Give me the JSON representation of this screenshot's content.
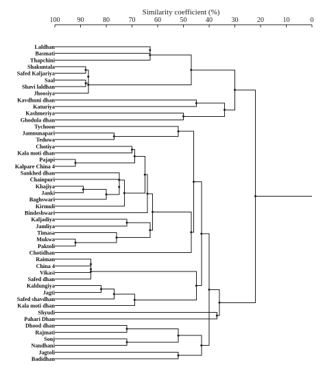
{
  "chart_data": {
    "type": "dendrogram",
    "xlabel": "Similarity coefficient (%)",
    "xlim": [
      100,
      0
    ],
    "ticks": [
      100,
      90,
      80,
      70,
      60,
      50,
      40,
      30,
      20,
      10,
      0
    ],
    "leaves": [
      "Laldhan",
      "Basmati",
      "Thapchini",
      "Shakuntala",
      "Safed Kaljariya",
      "Saal",
      "Shavi laldhan",
      "Jhoosiya",
      "Kavdhuni dhan",
      "Katuriya",
      "Kashmeriya",
      "Ghodula dhan",
      "Tychoon",
      "Jamnunapari",
      "Teduwa",
      "Chotiya",
      "Kala moti dhan",
      "Pajapi",
      "Kalpare China 4",
      "Sankhed dhan",
      "Chainpuri",
      "Khajiya",
      "Janki",
      "Baghswari",
      "Kirmuli",
      "Bindeshwari",
      "Kaljadiya",
      "Jamliya",
      "Timasa",
      "Mukwa",
      "Paktoli",
      "Chotidhan",
      "Raiman",
      "China 4",
      "Vikasi",
      "Safed dhan",
      "Kaldungiya",
      "Jagti",
      "Safed shavdhan",
      "Kala moti dhan",
      "Shyudi",
      "Pahari Dhan",
      "Dhood dhan",
      "Rajmati",
      "Sonj",
      "Nandhani",
      "Jagtoli",
      "Badidhan"
    ],
    "merges": [
      {
        "id": "m1",
        "a": 3,
        "b": 4,
        "similarity": 88
      },
      {
        "id": "m2",
        "a": 5,
        "b": 6,
        "similarity": 88
      },
      {
        "id": "m3",
        "a": 0,
        "b": 1,
        "similarity": 63
      },
      {
        "id": "m4",
        "a": "m3",
        "b": 2,
        "similarity": 63
      },
      {
        "id": "m5",
        "a": "m1",
        "b": "m2",
        "similarity": 87
      },
      {
        "id": "m6",
        "a": "m5",
        "b": 7,
        "similarity": 87
      },
      {
        "id": "m7",
        "a": "m4",
        "b": "m6",
        "similarity": 47
      },
      {
        "id": "m8",
        "a": 8,
        "b": 9,
        "similarity": 45
      },
      {
        "id": "m9",
        "a": 10,
        "b": 11,
        "similarity": 50
      },
      {
        "id": "m10",
        "a": "m8",
        "b": "m9",
        "similarity": 34
      },
      {
        "id": "m11",
        "a": "m7",
        "b": "m10",
        "similarity": 30
      },
      {
        "id": "m12",
        "a": 13,
        "b": 14,
        "similarity": 77
      },
      {
        "id": "m13",
        "a": 12,
        "b": "m12",
        "similarity": 52
      },
      {
        "id": "m14",
        "a": 17,
        "b": 18,
        "similarity": 92
      },
      {
        "id": "m15",
        "a": 15,
        "b": 16,
        "similarity": 70
      },
      {
        "id": "m16",
        "a": "m15",
        "b": "m14",
        "similarity": 69
      },
      {
        "id": "m17",
        "a": 21,
        "b": 22,
        "similarity": 89
      },
      {
        "id": "m18",
        "a": "m17",
        "b": 23,
        "similarity": 80
      },
      {
        "id": "m19",
        "a": 20,
        "b": "m18",
        "similarity": 75
      },
      {
        "id": "m20",
        "a": 19,
        "b": "m19",
        "similarity": 75
      },
      {
        "id": "m21",
        "a": "m20",
        "b": 24,
        "similarity": 73
      },
      {
        "id": "m22",
        "a": "m16",
        "b": "m21",
        "similarity": 65
      },
      {
        "id": "m23",
        "a": "m22",
        "b": 25,
        "similarity": 64
      },
      {
        "id": "m24",
        "a": 26,
        "b": 27,
        "similarity": 72
      },
      {
        "id": "m25",
        "a": 29,
        "b": 30,
        "similarity": 92
      },
      {
        "id": "m26",
        "a": 28,
        "b": "m25",
        "similarity": 76
      },
      {
        "id": "m27",
        "a": "m24",
        "b": "m26",
        "similarity": 63
      },
      {
        "id": "m28",
        "a": "m23",
        "b": "m27",
        "similarity": 62
      },
      {
        "id": "m29",
        "a": "m28",
        "b": 31,
        "similarity": 47
      },
      {
        "id": "m30",
        "a": "m13",
        "b": "m29",
        "similarity": 46
      },
      {
        "id": "m31",
        "a": 33,
        "b": 34,
        "similarity": 86
      },
      {
        "id": "m32",
        "a": 32,
        "b": "m31",
        "similarity": 86
      },
      {
        "id": "m33",
        "a": "m32",
        "b": 35,
        "similarity": 86
      },
      {
        "id": "m34",
        "a": 36,
        "b": 37,
        "similarity": 82
      },
      {
        "id": "m35",
        "a": "m34",
        "b": 38,
        "similarity": 77
      },
      {
        "id": "m36",
        "a": "m35",
        "b": 39,
        "similarity": 69
      },
      {
        "id": "m37",
        "a": "m33",
        "b": "m36",
        "similarity": 45
      },
      {
        "id": "m38",
        "a": "m30",
        "b": "m37",
        "similarity": 43
      },
      {
        "id": "m39",
        "a": 42,
        "b": 43,
        "similarity": 72
      },
      {
        "id": "m40",
        "a": 44,
        "b": 45,
        "similarity": 72
      },
      {
        "id": "m41",
        "a": "m39",
        "b": "m40",
        "similarity": 52
      },
      {
        "id": "m42",
        "a": 46,
        "b": 47,
        "similarity": 52
      },
      {
        "id": "m43",
        "a": "m41",
        "b": "m42",
        "similarity": 43
      },
      {
        "id": "m44",
        "a": "m38",
        "b": "m43",
        "similarity": 40
      },
      {
        "id": "m45",
        "a": 40,
        "b": 41,
        "similarity": 37
      },
      {
        "id": "m46",
        "a": "m44",
        "b": "m45",
        "similarity": 36
      },
      {
        "id": "m47",
        "a": "m11",
        "b": "m46",
        "similarity": 22
      }
    ]
  }
}
